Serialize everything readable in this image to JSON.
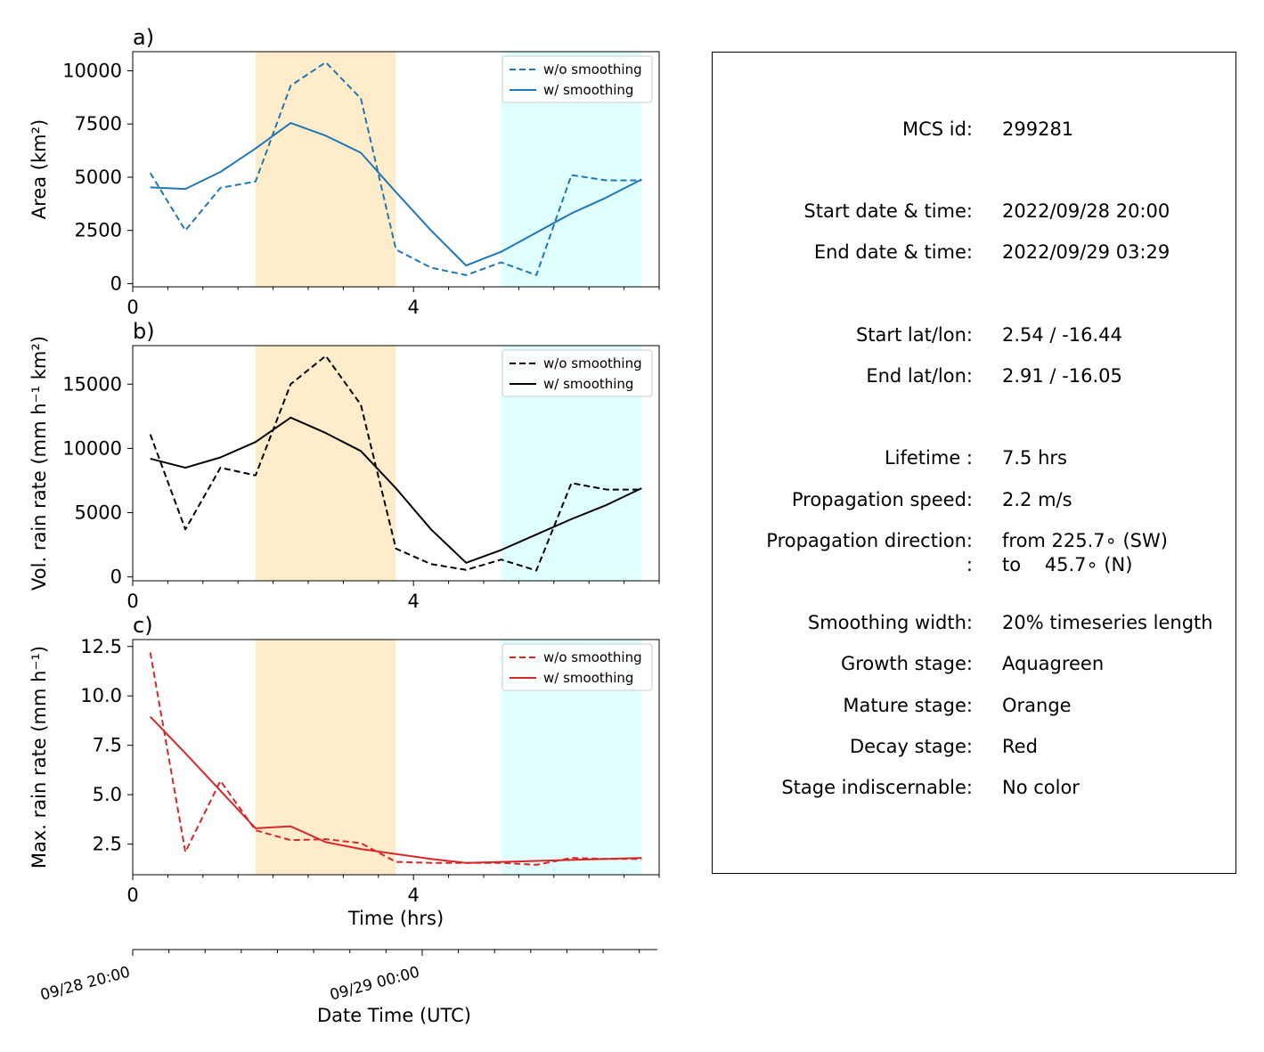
{
  "chart_data": [
    {
      "type": "line",
      "panel_label": "a)",
      "ylabel": "Area  (km²)",
      "xlim": [
        0,
        7.5
      ],
      "ylim": [
        -150,
        10900
      ],
      "yticks": [
        0,
        2500,
        5000,
        7500,
        10000
      ],
      "ytick_labels": [
        "0",
        "2500",
        "5000",
        "7500",
        "10000"
      ],
      "xticks": [
        0,
        4
      ],
      "xtick_labels": [
        "0",
        "4"
      ],
      "x": [
        0.25,
        0.75,
        1.25,
        1.75,
        2.25,
        2.75,
        3.25,
        3.75,
        4.25,
        4.75,
        5.25,
        5.75,
        6.25,
        6.75,
        7.25
      ],
      "series": [
        {
          "name": "w/o smoothing",
          "style": "dashed",
          "color": "#1f77b4",
          "values": [
            5200,
            2500,
            4500,
            4800,
            9300,
            10400,
            8700,
            1600,
            750,
            400,
            1000,
            400,
            5100,
            4850,
            4850
          ]
        },
        {
          "name": "w/ smoothing",
          "style": "solid",
          "color": "#1f77b4",
          "values": [
            4520,
            4450,
            5250,
            6350,
            7550,
            6950,
            6150,
            4300,
            2500,
            850,
            1500,
            2400,
            3300,
            4050,
            4900
          ]
        }
      ],
      "legend": "top-right"
    },
    {
      "type": "line",
      "panel_label": "b)",
      "ylabel": "Vol. rain rate (mm h⁻¹ km²)",
      "xlim": [
        0,
        7.5
      ],
      "ylim": [
        -300,
        18000
      ],
      "yticks": [
        0,
        5000,
        10000,
        15000
      ],
      "ytick_labels": [
        "0",
        "5000",
        "10000",
        "15000"
      ],
      "xticks": [
        0,
        4
      ],
      "xtick_labels": [
        "0",
        "4"
      ],
      "x": [
        0.25,
        0.75,
        1.25,
        1.75,
        2.25,
        2.75,
        3.25,
        3.75,
        4.25,
        4.75,
        5.25,
        5.75,
        6.25,
        6.75,
        7.25
      ],
      "series": [
        {
          "name": "w/o smoothing",
          "style": "dashed",
          "color": "#000000",
          "values": [
            11100,
            3700,
            8500,
            7900,
            15000,
            17200,
            13400,
            2200,
            1000,
            550,
            1350,
            500,
            7300,
            6800,
            6800
          ]
        },
        {
          "name": "w/ smoothing",
          "style": "solid",
          "color": "#000000",
          "values": [
            9200,
            8500,
            9300,
            10500,
            12400,
            11200,
            9800,
            6900,
            3700,
            1100,
            2100,
            3300,
            4500,
            5600,
            6900
          ]
        }
      ],
      "legend": "top-right"
    },
    {
      "type": "line",
      "panel_label": "c)",
      "ylabel": "Max. rain rate  (mm h⁻¹)",
      "xlabel": "Time (hrs)",
      "xlim": [
        0,
        7.5
      ],
      "ylim": [
        0.95,
        12.85
      ],
      "yticks": [
        2.5,
        5.0,
        7.5,
        10.0,
        12.5
      ],
      "ytick_labels": [
        "2.5",
        "5.0",
        "7.5",
        "10.0",
        "12.5"
      ],
      "xticks": [
        0,
        4
      ],
      "xtick_labels": [
        "0",
        "4"
      ],
      "x": [
        0.25,
        0.75,
        1.25,
        1.75,
        2.25,
        2.75,
        3.25,
        3.75,
        4.25,
        4.75,
        5.25,
        5.75,
        6.25,
        6.75,
        7.25
      ],
      "series": [
        {
          "name": "w/o smoothing",
          "style": "dashed",
          "color": "#d62728",
          "values": [
            12.2,
            2.1,
            5.7,
            3.2,
            2.7,
            2.75,
            2.55,
            1.6,
            1.55,
            1.55,
            1.55,
            1.45,
            1.8,
            1.75,
            1.75
          ]
        },
        {
          "name": "w/ smoothing",
          "style": "solid",
          "color": "#d62728",
          "values": [
            8.95,
            7.1,
            5.2,
            3.3,
            3.4,
            2.6,
            2.25,
            2.0,
            1.75,
            1.55,
            1.6,
            1.65,
            1.7,
            1.75,
            1.8
          ]
        }
      ],
      "legend": "top-right"
    }
  ],
  "stage_bands": [
    {
      "stage": "Mature",
      "x_range": [
        1.75,
        3.75
      ],
      "color": "#ffeccb"
    },
    {
      "stage": "Growth",
      "x_range": [
        5.25,
        7.25
      ],
      "color": "#e0ffff"
    }
  ],
  "datetime_axis": {
    "label": "Date Time (UTC)",
    "tick_labels": [
      "09/28 20:00",
      "09/29 00:00"
    ],
    "tick_positions": [
      0,
      4
    ]
  },
  "info": {
    "rows": [
      {
        "label": "MCS id:",
        "value": "299281"
      },
      {
        "label": "Start date & time:",
        "value": "2022/09/28 20:00"
      },
      {
        "label": "End date & time:",
        "value": "2022/09/29 03:29"
      },
      {
        "label": "Start lat/lon:",
        "value": "2.54 / -16.44"
      },
      {
        "label": "End lat/lon:",
        "value": "2.91 / -16.05"
      },
      {
        "label": "Lifetime :",
        "value": "7.5 hrs"
      },
      {
        "label": "Propagation speed:",
        "value": "2.2 m/s"
      },
      {
        "label": "Propagation direction:",
        "value": "from 225.7∘ (SW)"
      },
      {
        "label": ":",
        "value": "to    45.7∘ (N)"
      },
      {
        "label": "Smoothing width:",
        "value": "20% timeseries length"
      },
      {
        "label": "Growth stage:",
        "value": "Aquagreen"
      },
      {
        "label": "Mature stage:",
        "value": "Orange"
      },
      {
        "label": "Decay stage:",
        "value": "Red"
      },
      {
        "label": "Stage indiscernable:",
        "value": "No color"
      }
    ]
  }
}
